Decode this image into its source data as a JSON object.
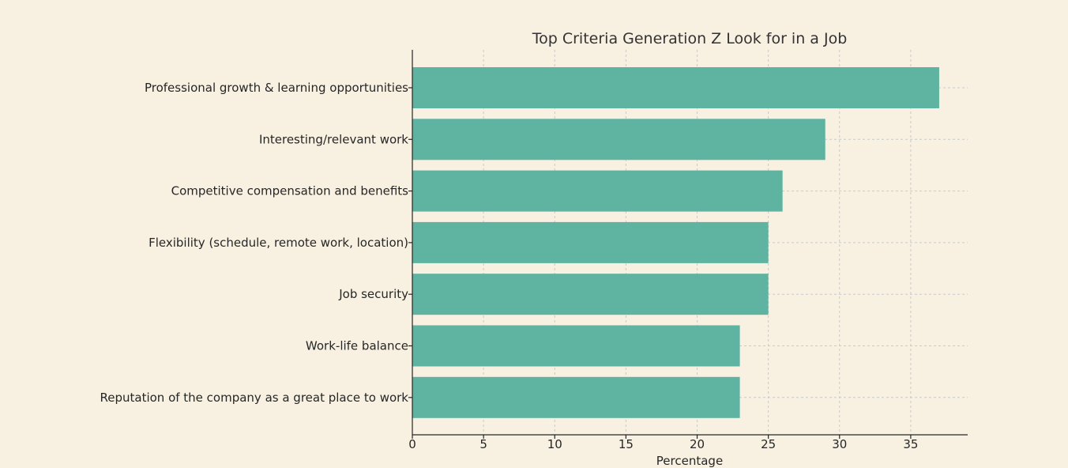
{
  "chart_data": {
    "type": "bar",
    "orientation": "horizontal",
    "title": "Top Criteria Generation Z Look for in a Job",
    "xlabel": "Percentage",
    "ylabel": "",
    "categories": [
      "Professional growth & learning opportunities",
      "Interesting/relevant work",
      "Competitive compensation and benefits",
      "Flexibility (schedule, remote work, location)",
      "Job security",
      "Work-life balance",
      "Reputation of the company as a great place to work"
    ],
    "values": [
      37,
      29,
      26,
      25,
      25,
      23,
      23
    ],
    "xlim": [
      0,
      39
    ],
    "xticks": [
      "0",
      "5",
      "10",
      "15",
      "20",
      "25",
      "30",
      "35"
    ],
    "grid": true,
    "bar_color": "#5fb3a1",
    "background_color": "#f8f1e2"
  }
}
